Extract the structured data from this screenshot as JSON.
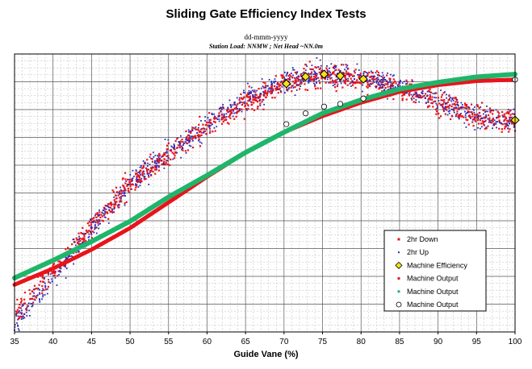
{
  "chart_data": {
    "type": "scatter",
    "title": "Sliding Gate Efficiency Index Tests",
    "subtitle": "dd-mmm-yyyy",
    "subtitle2": "Station Load: NNMW ; Net Head ~NN.0m",
    "xlabel": "Guide Vane (%)",
    "ylabel": "",
    "xlim": [
      35,
      100
    ],
    "x_ticks": [
      35,
      40,
      45,
      50,
      55,
      60,
      65,
      70,
      75,
      80,
      85,
      90,
      95,
      100
    ],
    "grid": true,
    "legend_position": "bottom-right",
    "colors": {
      "down": "#e8141b",
      "up": "#2a2ab4",
      "machine_efficiency": "#f2e21a",
      "machine_output_red": "#e8141b",
      "machine_output_green": "#1fb56a",
      "machine_output_white": "#ffffff"
    },
    "series": [
      {
        "name": "2hr Down",
        "marker": "red-dot",
        "trend_x": [
          35,
          40,
          45,
          50,
          55,
          60,
          65,
          70,
          75,
          80,
          85,
          90,
          95,
          100
        ],
        "trend_y": [
          0.06,
          0.22,
          0.39,
          0.55,
          0.66,
          0.76,
          0.85,
          0.92,
          0.95,
          0.94,
          0.9,
          0.85,
          0.8,
          0.78
        ]
      },
      {
        "name": "2hr Up",
        "marker": "blue-dot",
        "trend_x": [
          35,
          40,
          45,
          50,
          55,
          60,
          65,
          70,
          75,
          80,
          85,
          90,
          95,
          100
        ],
        "trend_y": [
          0.03,
          0.2,
          0.38,
          0.55,
          0.66,
          0.77,
          0.86,
          0.92,
          0.96,
          0.95,
          0.91,
          0.86,
          0.8,
          0.78
        ]
      },
      {
        "name": "Machine Efficiency",
        "marker": "yellow-diamond",
        "x": [
          70.3,
          72.8,
          75.2,
          77.3,
          80.3,
          100
        ],
        "y": [
          0.92,
          0.946,
          0.955,
          0.949,
          0.937,
          0.785
        ]
      },
      {
        "name": "Machine Output",
        "marker": "red-line",
        "x": [
          35,
          40,
          45,
          50,
          55,
          60,
          65,
          70,
          75,
          80,
          85,
          90,
          95,
          100
        ],
        "y": [
          0.175,
          0.235,
          0.305,
          0.385,
          0.48,
          0.575,
          0.665,
          0.74,
          0.8,
          0.85,
          0.89,
          0.915,
          0.93,
          0.935
        ]
      },
      {
        "name": "Machine Output",
        "marker": "green-line",
        "x": [
          35,
          40,
          45,
          50,
          55,
          60,
          65,
          70,
          75,
          80,
          85,
          90,
          95,
          100
        ],
        "y": [
          0.2,
          0.265,
          0.335,
          0.41,
          0.5,
          0.58,
          0.665,
          0.74,
          0.81,
          0.86,
          0.9,
          0.925,
          0.945,
          0.955
        ]
      },
      {
        "name": "Machine Output",
        "marker": "white-circle",
        "x": [
          70.3,
          72.8,
          75.2,
          77.3,
          80.3,
          100
        ],
        "y": [
          0.77,
          0.81,
          0.835,
          0.845,
          0.865,
          0.935
        ]
      }
    ]
  }
}
